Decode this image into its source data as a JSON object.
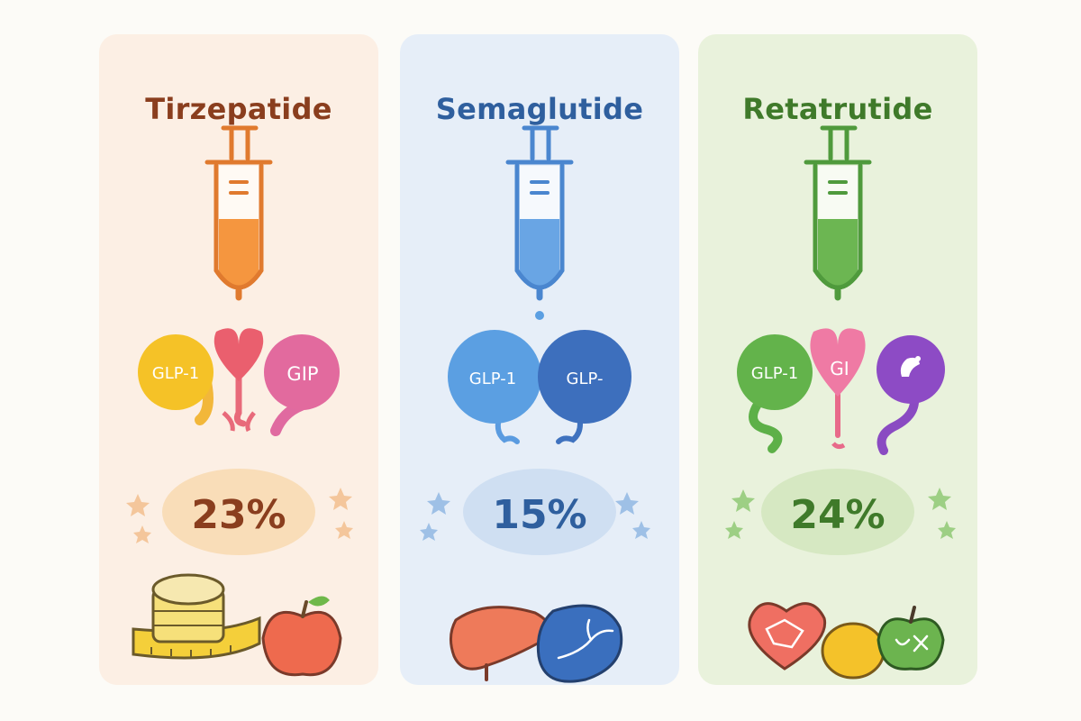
{
  "panels": [
    {
      "title": "Tirzepatide",
      "receptors": [
        "GLP-1",
        "GIP"
      ],
      "weight_loss": "23%",
      "colors": {
        "title": "#8a3e1e",
        "accent": "#f08a3a",
        "background": "#fcefe4",
        "percent": "#8a3e1e"
      },
      "icons": [
        "syringe-icon",
        "receptor-icon",
        "measuring-tape-icon",
        "apple-icon"
      ]
    },
    {
      "title": "Semaglutide",
      "receptors": [
        "GLP-1",
        "GLP-"
      ],
      "weight_loss": "15%",
      "colors": {
        "title": "#2f5f9e",
        "accent": "#4d8fd6",
        "background": "#e6eef8",
        "percent": "#2f5f9e"
      },
      "icons": [
        "syringe-icon",
        "receptor-icon",
        "liver-icon",
        "kidney-icon"
      ]
    },
    {
      "title": "Retatrutide",
      "receptors": [
        "GLP-1",
        "GI"
      ],
      "weight_loss": "24%",
      "colors": {
        "title": "#3f7a2a",
        "accent": "#5fb04a",
        "background": "#e9f2dc",
        "percent": "#3f7a2a"
      },
      "icons": [
        "syringe-icon",
        "receptor-icon",
        "heart-icon",
        "lemon-icon",
        "apple-icon"
      ]
    }
  ]
}
